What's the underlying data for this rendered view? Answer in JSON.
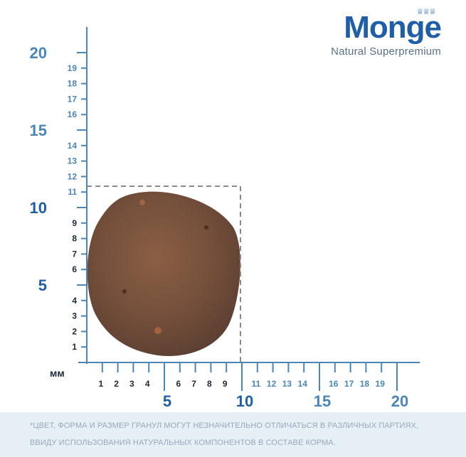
{
  "brand": {
    "name": "Monge",
    "tagline": "Natural Superpremium",
    "color": "#1f5fa8"
  },
  "ruler": {
    "unit_label": "мм",
    "accent_color": "#4a86b8",
    "major_color": "#1f5fa8",
    "y_major": [
      "20",
      "15",
      "10",
      "5"
    ],
    "y_minor": [
      "19",
      "18",
      "17",
      "16",
      "14",
      "13",
      "12",
      "11",
      "9",
      "8",
      "7",
      "6",
      "4",
      "3",
      "2",
      "1"
    ],
    "x_major": [
      "5",
      "10",
      "15",
      "20"
    ],
    "x_minor": [
      "1",
      "2",
      "3",
      "4",
      "6",
      "7",
      "8",
      "9",
      "11",
      "12",
      "13",
      "14",
      "16",
      "17",
      "18",
      "19"
    ],
    "kibble_size_mm": {
      "width": 10,
      "height": 11
    }
  },
  "disclaimer": {
    "line1": "*ЦВЕТ, ФОРМА И РАЗМЕР ГРАНУЛ МОГУТ НЕЗНАЧИТЕЛЬНО ОТЛИЧАТЬСЯ В РАЗЛИЧНЫХ ПАРТИЯХ,",
    "line2": "ВВИДУ ИСПОЛЬЗОВАНИЯ НАТУРАЛЬНЫХ КОМПОНЕНТОВ В СОСТАВЕ КОРМА."
  }
}
